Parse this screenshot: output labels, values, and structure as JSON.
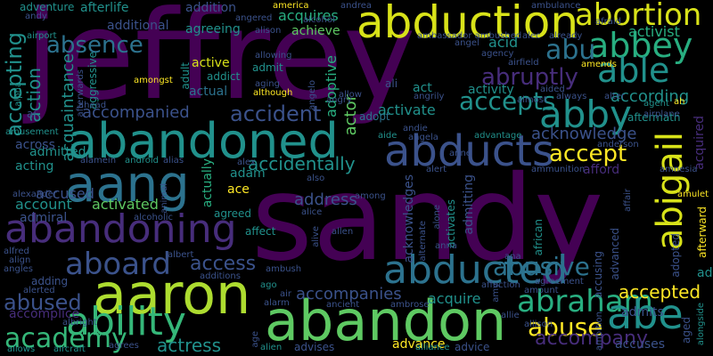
{
  "colors": {
    "background": "#000000",
    "palette": [
      "#440154",
      "#472d7b",
      "#3b528b",
      "#2c728e",
      "#21918c",
      "#28ae80",
      "#5ec962",
      "#addc30",
      "#fde725"
    ]
  },
  "words": [
    {
      "text": "jeffrey",
      "color": "#440154"
    },
    {
      "text": "sandy",
      "color": "#440154"
    },
    {
      "text": "abduction",
      "color": "#d8e219"
    },
    {
      "text": "abandoned",
      "color": "#21918c"
    },
    {
      "text": "aaron",
      "color": "#addc30"
    },
    {
      "text": "abandon",
      "color": "#5ec962"
    },
    {
      "text": "abducts",
      "color": "#3b528b"
    },
    {
      "text": "abducted",
      "color": "#2c728e"
    },
    {
      "text": "abandoning",
      "color": "#472d7b"
    },
    {
      "text": "aang",
      "color": "#2c728e"
    },
    {
      "text": "abbey",
      "color": "#28ae80"
    },
    {
      "text": "abby",
      "color": "#21918c"
    },
    {
      "text": "abortion",
      "color": "#d8e219"
    },
    {
      "text": "able",
      "color": "#21918c"
    },
    {
      "text": "abraham",
      "color": "#28ae80"
    },
    {
      "text": "abe",
      "color": "#21918c"
    },
    {
      "text": "ability",
      "color": "#35b779"
    },
    {
      "text": "aboard",
      "color": "#3b528b"
    },
    {
      "text": "academy",
      "color": "#35b779"
    },
    {
      "text": "abigail",
      "color": "#d8e219"
    },
    {
      "text": "abusive",
      "color": "#2c728e"
    },
    {
      "text": "abuse",
      "color": "#fde725"
    },
    {
      "text": "abu",
      "color": "#2c728e"
    },
    {
      "text": "abruptly",
      "color": "#472d7b"
    },
    {
      "text": "accepts",
      "color": "#21918c"
    },
    {
      "text": "accept",
      "color": "#fde725"
    },
    {
      "text": "absence",
      "color": "#2c728e"
    },
    {
      "text": "accepting",
      "color": "#21918c"
    },
    {
      "text": "accident",
      "color": "#3b528b"
    },
    {
      "text": "accidentally",
      "color": "#21918c"
    },
    {
      "text": "abused",
      "color": "#3b528b"
    },
    {
      "text": "accompanied",
      "color": "#3b528b"
    },
    {
      "text": "accompanies",
      "color": "#3b528b"
    },
    {
      "text": "accepted",
      "color": "#fde725"
    },
    {
      "text": "access",
      "color": "#3b528b"
    },
    {
      "text": "accompany",
      "color": "#472d7b"
    },
    {
      "text": "actress",
      "color": "#21918c"
    },
    {
      "text": "according",
      "color": "#21918c"
    },
    {
      "text": "activist",
      "color": "#28ae80"
    },
    {
      "text": "acquaintance",
      "color": "#21918c"
    },
    {
      "text": "acknowledge",
      "color": "#3b528b"
    },
    {
      "text": "accused",
      "color": "#3b528b"
    },
    {
      "text": "acquires",
      "color": "#28ae80"
    },
    {
      "text": "address",
      "color": "#3b528b"
    },
    {
      "text": "activated",
      "color": "#5ec962"
    },
    {
      "text": "activity",
      "color": "#21918c"
    },
    {
      "text": "acquire",
      "color": "#21918c"
    },
    {
      "text": "action",
      "color": "#21918c"
    },
    {
      "text": "activate",
      "color": "#21918c"
    },
    {
      "text": "account",
      "color": "#21918c"
    },
    {
      "text": "admitted",
      "color": "#21918c"
    },
    {
      "text": "acting",
      "color": "#21918c"
    },
    {
      "text": "across",
      "color": "#3b528b"
    },
    {
      "text": "achieve",
      "color": "#5ec962"
    },
    {
      "text": "actor",
      "color": "#5ec962"
    },
    {
      "text": "acid",
      "color": "#21918c"
    },
    {
      "text": "active",
      "color": "#d8e219"
    },
    {
      "text": "actual",
      "color": "#2c728e"
    },
    {
      "text": "actually",
      "color": "#28ae80"
    },
    {
      "text": "adam",
      "color": "#21918c"
    },
    {
      "text": "ace",
      "color": "#fde725"
    },
    {
      "text": "act",
      "color": "#21918c"
    },
    {
      "text": "adopt",
      "color": "#2c728e"
    },
    {
      "text": "adoptive",
      "color": "#28ae80"
    },
    {
      "text": "admitting",
      "color": "#3b528b"
    },
    {
      "text": "admits",
      "color": "#3b528b"
    },
    {
      "text": "acquired",
      "color": "#472d7b"
    },
    {
      "text": "aged",
      "color": "#3b528b"
    },
    {
      "text": "adventure",
      "color": "#21918c"
    },
    {
      "text": "afterlife",
      "color": "#21918c"
    },
    {
      "text": "addition",
      "color": "#3b528b"
    },
    {
      "text": "additional",
      "color": "#3b528b"
    },
    {
      "text": "agreeing",
      "color": "#21918c"
    },
    {
      "text": "admiral",
      "color": "#3b528b"
    },
    {
      "text": "accomplice",
      "color": "#472d7b"
    },
    {
      "text": "accusing",
      "color": "#3b528b"
    },
    {
      "text": "accuses",
      "color": "#3b528b"
    },
    {
      "text": "acknowledges",
      "color": "#3b528b"
    },
    {
      "text": "activates",
      "color": "#21918c"
    },
    {
      "text": "advance",
      "color": "#fde725"
    },
    {
      "text": "advanced",
      "color": "#3b528b"
    },
    {
      "text": "afford",
      "color": "#472d7b"
    },
    {
      "text": "affect",
      "color": "#21918c"
    },
    {
      "text": "agreed",
      "color": "#21918c"
    },
    {
      "text": "aftermath",
      "color": "#21918c"
    },
    {
      "text": "adding",
      "color": "#3b528b"
    },
    {
      "text": "admit",
      "color": "#21918c"
    },
    {
      "text": "adult",
      "color": "#21918c"
    },
    {
      "text": "addict",
      "color": "#21918c"
    },
    {
      "text": "aggressive",
      "color": "#21918c"
    },
    {
      "text": "advises",
      "color": "#3b528b"
    },
    {
      "text": "advice",
      "color": "#3b528b"
    },
    {
      "text": "ad",
      "color": "#21918c"
    },
    {
      "text": "african",
      "color": "#21918c"
    },
    {
      "text": "afterward",
      "color": "#fde725"
    },
    {
      "text": "alongside",
      "color": "#21918c"
    },
    {
      "text": "adopted",
      "color": "#3b528b"
    },
    {
      "text": "alexander",
      "color": "#3b528b"
    },
    {
      "text": "alfred",
      "color": "#3b528b"
    },
    {
      "text": "agent",
      "color": "#21918c"
    },
    {
      "text": "affair",
      "color": "#3b528b"
    },
    {
      "text": "advantage",
      "color": "#21918c"
    },
    {
      "text": "alliance",
      "color": "#21918c"
    },
    {
      "text": "alien",
      "color": "#21918c"
    },
    {
      "text": "allows",
      "color": "#21918c"
    },
    {
      "text": "agrees",
      "color": "#3b528b"
    },
    {
      "text": "aircraft",
      "color": "#21918c"
    },
    {
      "text": "ago",
      "color": "#21918c"
    },
    {
      "text": "age",
      "color": "#3b528b"
    },
    {
      "text": "affection",
      "color": "#3b528b"
    },
    {
      "text": "airport",
      "color": "#21918c"
    },
    {
      "text": "afterwards",
      "color": "#3b528b"
    },
    {
      "text": "alpha",
      "color": "#21918c"
    },
    {
      "text": "ai",
      "color": "#3b528b"
    },
    {
      "text": "amusement",
      "color": "#21918c"
    },
    {
      "text": "alamein",
      "color": "#3b528b"
    },
    {
      "text": "android",
      "color": "#21918c"
    },
    {
      "text": "alias",
      "color": "#3b528b"
    },
    {
      "text": "alex",
      "color": "#3b528b"
    },
    {
      "text": "alert",
      "color": "#3b528b"
    },
    {
      "text": "alarm",
      "color": "#3b528b"
    },
    {
      "text": "air",
      "color": "#3b528b"
    },
    {
      "text": "ambrose",
      "color": "#3b528b"
    },
    {
      "text": "ancient",
      "color": "#3b528b"
    },
    {
      "text": "aide",
      "color": "#21918c"
    },
    {
      "text": "andie",
      "color": "#3b528b"
    },
    {
      "text": "angela",
      "color": "#3b528b"
    },
    {
      "text": "allen",
      "color": "#3b528b"
    },
    {
      "text": "alice",
      "color": "#3b528b"
    },
    {
      "text": "also",
      "color": "#3b528b"
    },
    {
      "text": "among",
      "color": "#3b528b"
    },
    {
      "text": "alone",
      "color": "#3b528b"
    },
    {
      "text": "alternate",
      "color": "#3b528b"
    },
    {
      "text": "allie",
      "color": "#3b528b"
    },
    {
      "text": "allison",
      "color": "#3b528b"
    },
    {
      "text": "amy",
      "color": "#3b528b"
    },
    {
      "text": "amount",
      "color": "#3b528b"
    },
    {
      "text": "ambition",
      "color": "#3b528b"
    },
    {
      "text": "agreement",
      "color": "#3b528b"
    },
    {
      "text": "ambush",
      "color": "#3b528b"
    },
    {
      "text": "albright",
      "color": "#3b528b"
    },
    {
      "text": "alerted",
      "color": "#3b528b"
    },
    {
      "text": "angles",
      "color": "#3b528b"
    },
    {
      "text": "align",
      "color": "#3b528b"
    },
    {
      "text": "albert",
      "color": "#3b528b"
    },
    {
      "text": "additions",
      "color": "#3b528b"
    },
    {
      "text": "alcoholic",
      "color": "#3b528b"
    },
    {
      "text": "animal",
      "color": "#3b528b"
    },
    {
      "text": "alive",
      "color": "#3b528b"
    },
    {
      "text": "anna",
      "color": "#3b528b"
    },
    {
      "text": "ana",
      "color": "#3b528b"
    },
    {
      "text": "ammunition",
      "color": "#3b528b"
    },
    {
      "text": "amnesia",
      "color": "#3b528b"
    },
    {
      "text": "anderson",
      "color": "#3b528b"
    },
    {
      "text": "alter",
      "color": "#3b528b"
    },
    {
      "text": "airplane",
      "color": "#3b528b"
    },
    {
      "text": "always",
      "color": "#3b528b"
    },
    {
      "text": "aided",
      "color": "#3b528b"
    },
    {
      "text": "angrily",
      "color": "#3b528b"
    },
    {
      "text": "allow",
      "color": "#3b528b"
    },
    {
      "text": "amulet",
      "color": "#fde725"
    },
    {
      "text": "ali",
      "color": "#3b528b"
    },
    {
      "text": "airfield",
      "color": "#3b528b"
    },
    {
      "text": "agency",
      "color": "#3b528b"
    },
    {
      "text": "alec",
      "color": "#3b528b"
    },
    {
      "text": "already",
      "color": "#3b528b"
    },
    {
      "text": "afraid",
      "color": "#3b528b"
    },
    {
      "text": "amends",
      "color": "#fde725"
    },
    {
      "text": "ambassador ambushed",
      "color": "#3b528b"
    },
    {
      "text": "ambulance",
      "color": "#3b528b"
    },
    {
      "text": "america",
      "color": "#fde725"
    },
    {
      "text": "andrea",
      "color": "#3b528b"
    },
    {
      "text": "alison",
      "color": "#3b528b"
    },
    {
      "text": "alcohol",
      "color": "#3b528b"
    },
    {
      "text": "angered",
      "color": "#3b528b"
    },
    {
      "text": "angel",
      "color": "#3b528b"
    },
    {
      "text": "angelo",
      "color": "#3b528b"
    },
    {
      "text": "angry",
      "color": "#3b528b"
    },
    {
      "text": "allowing",
      "color": "#3b528b"
    },
    {
      "text": "aging",
      "color": "#3b528b"
    },
    {
      "text": "although",
      "color": "#fde725"
    },
    {
      "text": "amongst",
      "color": "#fde725"
    },
    {
      "text": "almost",
      "color": "#3b528b"
    },
    {
      "text": "ah",
      "color": "#fde725"
    },
    {
      "text": "ahead",
      "color": "#3b528b"
    },
    {
      "text": "andy",
      "color": "#3b528b"
    },
    {
      "text": "anne",
      "color": "#3b528b"
    }
  ]
}
